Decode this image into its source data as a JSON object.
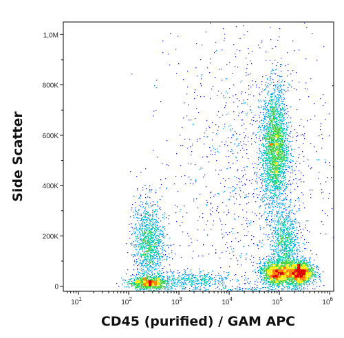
{
  "chart_data": {
    "type": "scatter",
    "xlabel": "CD45 (purified) / GAM APC",
    "ylabel": "Side Scatter",
    "x_scale": "log",
    "xlim": [
      5,
      1200000
    ],
    "ylim": [
      -20000,
      1050000
    ],
    "x_ticks": [
      {
        "value": 10,
        "label": "10",
        "exp": "1"
      },
      {
        "value": 100,
        "label": "10",
        "exp": "2"
      },
      {
        "value": 1000,
        "label": "10",
        "exp": "3"
      },
      {
        "value": 10000,
        "label": "10",
        "exp": "4"
      },
      {
        "value": 100000,
        "label": "10",
        "exp": "5"
      },
      {
        "value": 1000000,
        "label": "10",
        "exp": "6"
      }
    ],
    "y_ticks": [
      {
        "value": 0,
        "label": "0"
      },
      {
        "value": 200000,
        "label": "200K"
      },
      {
        "value": 400000,
        "label": "400K"
      },
      {
        "value": 600000,
        "label": "600K"
      },
      {
        "value": 800000,
        "label": "800K"
      },
      {
        "value": 1000000,
        "label": "1,0M"
      }
    ],
    "colormap": [
      "#1a1aff",
      "#00a0ff",
      "#00d0a0",
      "#40d040",
      "#f0f000",
      "#ff8000",
      "#e00000"
    ],
    "populations": [
      {
        "x_center": 250,
        "y_center": 15000,
        "x_sd_decades": 0.2,
        "y_sd": 12000,
        "count": 900
      },
      {
        "x_center": 250,
        "y_center": 170000,
        "x_sd_decades": 0.16,
        "y_sd": 90000,
        "count": 1300
      },
      {
        "x_center": 2000,
        "y_center": 25000,
        "x_sd_decades": 0.45,
        "y_sd": 18000,
        "count": 450
      },
      {
        "x_center": 80000,
        "y_center": 550000,
        "x_sd_decades": 0.13,
        "y_sd": 120000,
        "count": 2600
      },
      {
        "x_center": 130000,
        "y_center": 170000,
        "x_sd_decades": 0.13,
        "y_sd": 70000,
        "count": 900
      },
      {
        "x_center": 90000,
        "y_center": 55000,
        "x_sd_decades": 0.16,
        "y_sd": 25000,
        "count": 1600
      },
      {
        "x_center": 250000,
        "y_center": 55000,
        "x_sd_decades": 0.14,
        "y_sd": 25000,
        "count": 1700
      },
      {
        "x_center": 30000,
        "y_center": 450000,
        "x_sd_decades": 0.8,
        "y_sd": 330000,
        "count": 1300
      }
    ]
  }
}
